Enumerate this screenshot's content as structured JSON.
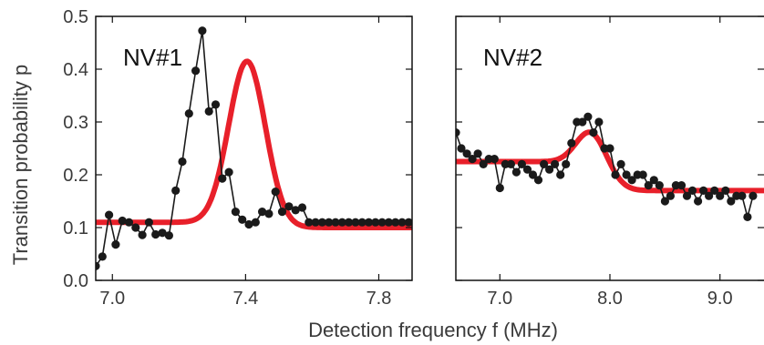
{
  "chart_data": {
    "type": "line",
    "ylabel": "Transition probability p",
    "xlabel": "Detection frequency f (MHz)",
    "colors": {
      "data": "#1a1a1a",
      "fit": "#e8202a"
    },
    "panels": [
      {
        "label": "NV#1",
        "xlim": [
          6.95,
          7.9
        ],
        "ylim": [
          0.0,
          0.5
        ],
        "xticks": [
          7.0,
          7.4,
          7.8
        ],
        "xtick_labels": [
          "7.0",
          "7.4",
          "7.8"
        ],
        "yticks": [
          0.0,
          0.1,
          0.2,
          0.3,
          0.4,
          0.5
        ],
        "ytick_labels": [
          "0.0",
          "0.1",
          "0.2",
          "0.3",
          "0.4",
          "0.5"
        ],
        "data": {
          "x": [
            6.95,
            6.97,
            6.99,
            7.01,
            7.03,
            7.05,
            7.07,
            7.09,
            7.11,
            7.13,
            7.15,
            7.17,
            7.19,
            7.21,
            7.23,
            7.25,
            7.27,
            7.29,
            7.31,
            7.33,
            7.35,
            7.37,
            7.39,
            7.41,
            7.43,
            7.45,
            7.47,
            7.49,
            7.51,
            7.53,
            7.55,
            7.57,
            7.59,
            7.61,
            7.63,
            7.65,
            7.67,
            7.69,
            7.71,
            7.73,
            7.75,
            7.77,
            7.79,
            7.81,
            7.83,
            7.85,
            7.87,
            7.89
          ],
          "y": [
            0.027,
            0.045,
            0.124,
            0.068,
            0.113,
            0.11,
            0.1,
            0.086,
            0.11,
            0.087,
            0.09,
            0.085,
            0.17,
            0.225,
            0.316,
            0.397,
            0.473,
            0.32,
            0.333,
            0.193,
            0.205,
            0.13,
            0.115,
            0.106,
            0.11,
            0.13,
            0.126,
            0.168,
            0.13,
            0.14,
            0.133,
            0.138,
            0.11,
            0.11,
            0.11,
            0.11,
            0.11,
            0.11,
            0.11,
            0.11,
            0.11,
            0.11,
            0.11,
            0.11,
            0.11,
            0.11,
            0.11,
            0.11
          ]
        },
        "fit": {
          "baseline_left": 0.11,
          "baseline_right": 0.1,
          "amplitude": 0.31,
          "center": 7.405,
          "sigma": 0.055
        }
      },
      {
        "label": "NV#2",
        "xlim": [
          6.6,
          9.4
        ],
        "ylim": [
          0.0,
          0.5
        ],
        "xticks": [
          7.0,
          8.0,
          9.0
        ],
        "xtick_labels": [
          "7.0",
          "8.0",
          "9.0"
        ],
        "yticks": [
          0.0,
          0.1,
          0.2,
          0.3,
          0.4,
          0.5
        ],
        "data": {
          "x": [
            6.6,
            6.65,
            6.7,
            6.75,
            6.8,
            6.85,
            6.9,
            6.95,
            7.0,
            7.05,
            7.1,
            7.15,
            7.2,
            7.25,
            7.3,
            7.35,
            7.4,
            7.45,
            7.5,
            7.55,
            7.6,
            7.65,
            7.7,
            7.75,
            7.8,
            7.85,
            7.9,
            7.95,
            8.0,
            8.05,
            8.1,
            8.15,
            8.2,
            8.25,
            8.3,
            8.35,
            8.4,
            8.45,
            8.5,
            8.55,
            8.6,
            8.65,
            8.7,
            8.75,
            8.8,
            8.85,
            8.9,
            8.95,
            9.0,
            9.05,
            9.1,
            9.15,
            9.2,
            9.25,
            9.3
          ],
          "y": [
            0.28,
            0.25,
            0.24,
            0.23,
            0.24,
            0.22,
            0.23,
            0.23,
            0.175,
            0.22,
            0.22,
            0.205,
            0.22,
            0.21,
            0.2,
            0.19,
            0.22,
            0.21,
            0.22,
            0.2,
            0.22,
            0.26,
            0.3,
            0.3,
            0.31,
            0.28,
            0.3,
            0.25,
            0.25,
            0.2,
            0.22,
            0.2,
            0.19,
            0.2,
            0.2,
            0.18,
            0.19,
            0.18,
            0.15,
            0.16,
            0.18,
            0.18,
            0.16,
            0.17,
            0.15,
            0.17,
            0.16,
            0.17,
            0.16,
            0.17,
            0.15,
            0.16,
            0.16,
            0.12,
            0.16
          ]
        },
        "fit": {
          "baseline_left": 0.225,
          "baseline_right": 0.17,
          "amplitude": 0.08,
          "center": 7.85,
          "sigma": 0.14
        }
      }
    ]
  }
}
